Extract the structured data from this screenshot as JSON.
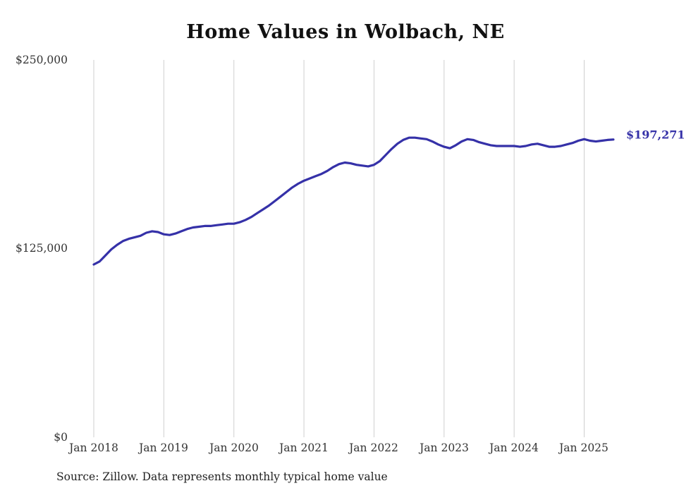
{
  "title": "Home Values in Wolbach, NE",
  "source_note": "Source: Zillow. Data represents monthly typical home value",
  "end_label": "$197,271",
  "colors": {
    "line": "#3531a8",
    "grid": "#cfcfcf",
    "axis_text": "#333333",
    "title_text": "#111111",
    "end_label_text": "#3531a8"
  },
  "chart_data": {
    "type": "line",
    "title": "Home Values in Wolbach, NE",
    "xlabel": "",
    "ylabel": "",
    "ylim": [
      0,
      250000
    ],
    "grid": "vertical-only",
    "legend": "none",
    "start_month": "Jan 2018",
    "frequency": "monthly",
    "yticks": [
      "$0",
      "$125,000",
      "$250,000"
    ],
    "ytick_values": [
      0,
      125000,
      250000
    ],
    "xticks": [
      "Jan 2018",
      "Jan 2019",
      "Jan 2020",
      "Jan 2021",
      "Jan 2022",
      "Jan 2023",
      "Jan 2024",
      "Jan 2025"
    ],
    "latest_value": 197271,
    "values": [
      114500,
      116500,
      120500,
      124500,
      127500,
      130000,
      131500,
      132500,
      133500,
      135500,
      136500,
      136000,
      134500,
      134000,
      135000,
      136500,
      138000,
      139000,
      139500,
      140000,
      140000,
      140500,
      141000,
      141500,
      141500,
      142500,
      144000,
      146000,
      148500,
      151000,
      153500,
      156500,
      159500,
      162500,
      165500,
      168000,
      170000,
      171500,
      173000,
      174500,
      176500,
      179000,
      181000,
      182000,
      181500,
      180500,
      180000,
      179500,
      180500,
      183000,
      187000,
      191000,
      194500,
      197000,
      198500,
      198500,
      198000,
      197500,
      196000,
      194000,
      192500,
      191500,
      193500,
      196000,
      197500,
      197000,
      195500,
      194500,
      193500,
      193000,
      193000,
      193000,
      193000,
      192500,
      193000,
      194000,
      194500,
      193500,
      192500,
      192500,
      193000,
      194000,
      195000,
      196500,
      197500,
      196500,
      196000,
      196500,
      197000,
      197271
    ]
  }
}
